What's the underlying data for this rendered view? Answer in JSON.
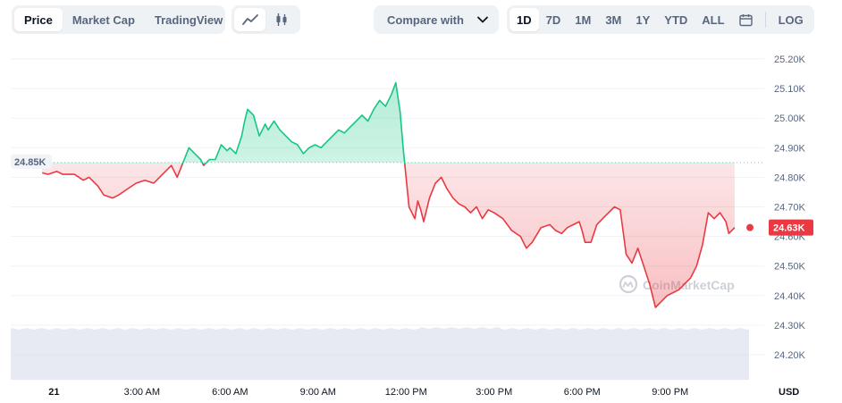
{
  "toolbar": {
    "views": [
      {
        "label": "Price",
        "active": true
      },
      {
        "label": "Market Cap",
        "active": false
      },
      {
        "label": "TradingView",
        "active": false
      }
    ],
    "chart_types": [
      {
        "icon": "line-chart-icon",
        "active": true
      },
      {
        "icon": "candlestick-icon",
        "active": false
      }
    ],
    "compare_label": "Compare with",
    "ranges": [
      {
        "label": "1D",
        "active": true
      },
      {
        "label": "7D",
        "active": false
      },
      {
        "label": "1M",
        "active": false
      },
      {
        "label": "3M",
        "active": false
      },
      {
        "label": "1Y",
        "active": false
      },
      {
        "label": "YTD",
        "active": false
      },
      {
        "label": "ALL",
        "active": false
      }
    ],
    "calendar_icon": "calendar-icon",
    "log_label": "LOG"
  },
  "watermark": "CoinMarketCap",
  "colors": {
    "up": "#16c784",
    "down": "#ea3943",
    "grid": "#eff2f5",
    "volume": "#cfd6e4",
    "baseline_badge": "#f1f3f6",
    "current_badge": "#ea3943"
  },
  "chart_data": {
    "type": "area",
    "x_ticks": [
      "21",
      "3:00 AM",
      "6:00 AM",
      "9:00 AM",
      "12:00 PM",
      "3:00 PM",
      "6:00 PM",
      "9:00 PM"
    ],
    "x_tick_hours": [
      0,
      3,
      6,
      9,
      12,
      15,
      18,
      21
    ],
    "x_range_hours": [
      -0.62,
      23.75
    ],
    "y_ticks": [
      "25.20K",
      "25.10K",
      "25.00K",
      "24.90K",
      "24.80K",
      "24.70K",
      "24.60K",
      "24.50K",
      "24.40K",
      "24.30K",
      "24.20K"
    ],
    "y_tick_values": [
      25200,
      25100,
      25000,
      24900,
      24800,
      24700,
      24600,
      24500,
      24400,
      24300,
      24200
    ],
    "ylim": [
      24200,
      25200
    ],
    "currency": "USD",
    "baseline": {
      "value": 24850,
      "label": "24.85K"
    },
    "current": {
      "value": 24630,
      "label": "24.63K"
    },
    "series": [
      {
        "hours": [
          -0.4,
          -0.2,
          0.1,
          0.3,
          0.7,
          1.0,
          1.2,
          1.5,
          1.7,
          2.0,
          2.2,
          2.5,
          2.8,
          3.1,
          3.4,
          3.6,
          3.8,
          4.0,
          4.2,
          4.4,
          4.6,
          4.8,
          5.0,
          5.1,
          5.3,
          5.5,
          5.7,
          5.8,
          5.9,
          6.0,
          6.2,
          6.4,
          6.5,
          6.6,
          6.8,
          7.0,
          7.2,
          7.3,
          7.5,
          7.7,
          7.9,
          8.1,
          8.3,
          8.5,
          8.7,
          8.9,
          9.1,
          9.3,
          9.5,
          9.7,
          9.9,
          10.1,
          10.3,
          10.5,
          10.7,
          10.9,
          11.1,
          11.3,
          11.5,
          11.65,
          11.8,
          11.9,
          12.0,
          12.1,
          12.3,
          12.4,
          12.5,
          12.6,
          12.8,
          13.0,
          13.2,
          13.4,
          13.6,
          13.8,
          14.0,
          14.2,
          14.4,
          14.6,
          14.8,
          15.0,
          15.3,
          15.6,
          15.9,
          16.1,
          16.3,
          16.6,
          16.9,
          17.1,
          17.3,
          17.5,
          17.7,
          17.9,
          18.0,
          18.1,
          18.3,
          18.5,
          18.7,
          18.9,
          19.1,
          19.3,
          19.5,
          19.7,
          19.9,
          20.1,
          20.3,
          20.5,
          20.7,
          20.9,
          21.1,
          21.3,
          21.5,
          21.7,
          21.9,
          22.1,
          22.3,
          22.5,
          22.7,
          22.9,
          23.0,
          23.2
        ],
        "values": [
          24815,
          24810,
          24820,
          24810,
          24810,
          24790,
          24800,
          24770,
          24740,
          24730,
          24740,
          24760,
          24780,
          24790,
          24780,
          24800,
          24820,
          24840,
          24800,
          24850,
          24900,
          24880,
          24860,
          24840,
          24860,
          24860,
          24910,
          24900,
          24890,
          24900,
          24880,
          24940,
          24990,
          25030,
          25010,
          24940,
          24980,
          24960,
          24990,
          24960,
          24940,
          24920,
          24910,
          24880,
          24900,
          24910,
          24900,
          24920,
          24940,
          24960,
          24950,
          24970,
          24990,
          25010,
          24990,
          25030,
          25060,
          25040,
          25080,
          25120,
          25020,
          24900,
          24800,
          24700,
          24660,
          24720,
          24690,
          24650,
          24730,
          24780,
          24800,
          24760,
          24730,
          24710,
          24700,
          24680,
          24700,
          24660,
          24690,
          24680,
          24660,
          24620,
          24600,
          24560,
          24580,
          24630,
          24640,
          24620,
          24610,
          24630,
          24640,
          24650,
          24620,
          24580,
          24580,
          24640,
          24660,
          24680,
          24700,
          24690,
          24540,
          24510,
          24560,
          24500,
          24440,
          24360,
          24380,
          24400,
          24410,
          24420,
          24440,
          24460,
          24500,
          24570,
          24680,
          24660,
          24680,
          24650,
          24610,
          24630
        ]
      }
    ]
  }
}
